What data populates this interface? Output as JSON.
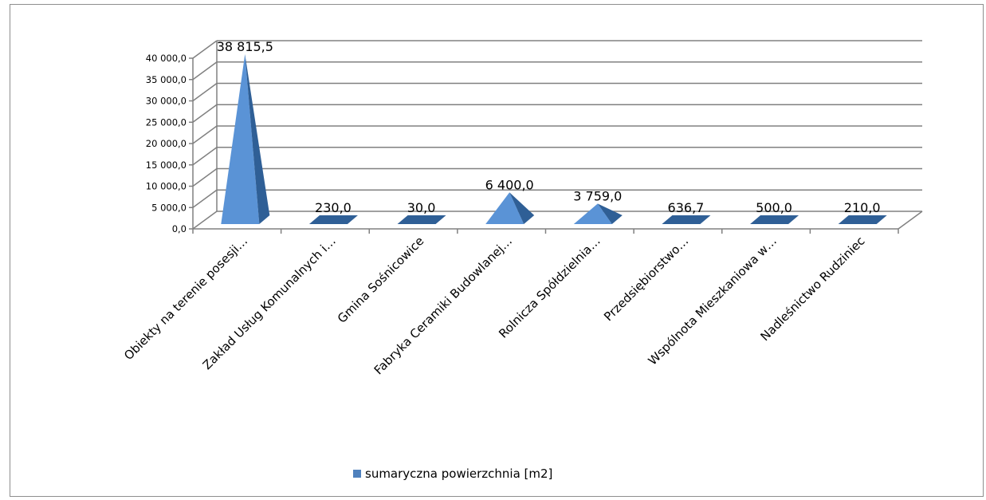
{
  "chart_data": {
    "type": "bar",
    "bar_shape": "pyramid-3d",
    "categories": [
      "Obiekty na terenie posesji…",
      "Zakład Usług Komunalnych i…",
      "Gmina Sośnicowice",
      "Fabryka Ceramiki Budowlanej…",
      "Rolnicza Spółdzielnia…",
      "Przedsiębiorstwo…",
      "Wspólnota Mieszkaniowa w…",
      "Nadleśnictwo Rudziniec"
    ],
    "series": [
      {
        "name": "sumaryczna powierzchnia [m2]",
        "values": [
          38815.5,
          230.0,
          30.0,
          6400.0,
          3759.0,
          636.7,
          500.0,
          210.0
        ],
        "data_labels": [
          "38 815,5",
          "230,0",
          "30,0",
          "6 400,0",
          "3 759,0",
          "636,7",
          "500,0",
          "210,0"
        ],
        "color": "#4f81bd"
      }
    ],
    "y_ticks": [
      "0,0",
      "5 000,0",
      "10 000,0",
      "15 000,0",
      "20 000,0",
      "25 000,0",
      "30 000,0",
      "35 000,0",
      "40 000,0"
    ],
    "ylim": [
      0,
      40000
    ],
    "grid": true,
    "legend_position": "bottom",
    "legend": [
      "sumaryczna powierzchnia [m2]"
    ],
    "colors": {
      "face_light": "#5a93d6",
      "face_dark": "#2f5f96",
      "gridline": "#808080",
      "wall": "#ffffff"
    }
  }
}
